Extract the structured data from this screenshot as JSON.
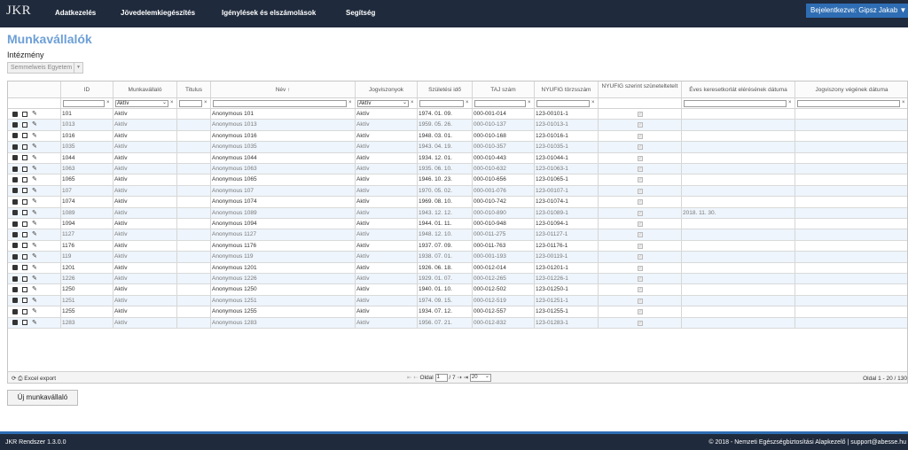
{
  "app": {
    "logo": "JKR"
  },
  "nav": [
    {
      "label": "Adatkezelés"
    },
    {
      "label": "Jövedelemkiegészítés"
    },
    {
      "label": "Igénylések és elszámolások"
    },
    {
      "label": "Segítség"
    }
  ],
  "login": {
    "label": "Bejelentkezve: Gipsz Jakab ▼"
  },
  "page": {
    "title": "Munkavállalók",
    "institution_label": "Intézmény",
    "institution_value": "Semmelweis Egyetem"
  },
  "columns": [
    "",
    "ID",
    "Munkavállaló",
    "Titulus",
    "Név ↑",
    "Jogviszonyok",
    "Születési idő",
    "TAJ szám",
    "NYUFIG törzsszám",
    "NYUFIG szerint szünetelteteIt",
    "Éves keresetkorlát elérésének dátuma",
    "Jogviszony végének dátuma"
  ],
  "filters": {
    "munkavallalo": "Aktív",
    "jogviszony": "Aktív",
    "clear": "×",
    "arrow": "⌄"
  },
  "rows": [
    {
      "id": "101",
      "status": "Aktív",
      "name": "Anonymous 101",
      "jog": "Aktív",
      "dob": "1974. 01. 09.",
      "taj": "000-001-014",
      "nyufig": "123-00101-1",
      "eves": ""
    },
    {
      "id": "1013",
      "status": "Aktív",
      "name": "Anonymous 1013",
      "jog": "Aktív",
      "dob": "1959. 05. 26.",
      "taj": "000-010-137",
      "nyufig": "123-01013-1",
      "eves": ""
    },
    {
      "id": "1016",
      "status": "Aktív",
      "name": "Anonymous 1016",
      "jog": "Aktív",
      "dob": "1948. 03. 01.",
      "taj": "000-010-168",
      "nyufig": "123-01016-1",
      "eves": ""
    },
    {
      "id": "1035",
      "status": "Aktív",
      "name": "Anonymous 1035",
      "jog": "Aktív",
      "dob": "1943. 04. 19.",
      "taj": "000-010-357",
      "nyufig": "123-01035-1",
      "eves": ""
    },
    {
      "id": "1044",
      "status": "Aktív",
      "name": "Anonymous 1044",
      "jog": "Aktív",
      "dob": "1934. 12. 01.",
      "taj": "000-010-443",
      "nyufig": "123-01044-1",
      "eves": ""
    },
    {
      "id": "1063",
      "status": "Aktív",
      "name": "Anonymous 1063",
      "jog": "Aktív",
      "dob": "1935. 06. 10.",
      "taj": "000-010-632",
      "nyufig": "123-01063-1",
      "eves": ""
    },
    {
      "id": "1065",
      "status": "Aktív",
      "name": "Anonymous 1065",
      "jog": "Aktív",
      "dob": "1946. 10. 23.",
      "taj": "000-010-656",
      "nyufig": "123-01065-1",
      "eves": ""
    },
    {
      "id": "107",
      "status": "Aktív",
      "name": "Anonymous 107",
      "jog": "Aktív",
      "dob": "1970. 05. 02.",
      "taj": "000-001-076",
      "nyufig": "123-00107-1",
      "eves": ""
    },
    {
      "id": "1074",
      "status": "Aktív",
      "name": "Anonymous 1074",
      "jog": "Aktív",
      "dob": "1969. 08. 10.",
      "taj": "000-010-742",
      "nyufig": "123-01074-1",
      "eves": ""
    },
    {
      "id": "1089",
      "status": "Aktív",
      "name": "Anonymous 1089",
      "jog": "Aktív",
      "dob": "1943. 12. 12.",
      "taj": "000-010-890",
      "nyufig": "123-01089-1",
      "eves": "2018. 11. 30."
    },
    {
      "id": "1094",
      "status": "Aktív",
      "name": "Anonymous 1094",
      "jog": "Aktív",
      "dob": "1944. 01. 11.",
      "taj": "000-010-948",
      "nyufig": "123-01094-1",
      "eves": ""
    },
    {
      "id": "1127",
      "status": "Aktív",
      "name": "Anonymous 1127",
      "jog": "Aktív",
      "dob": "1948. 12. 10.",
      "taj": "000-011-275",
      "nyufig": "123-01127-1",
      "eves": ""
    },
    {
      "id": "1176",
      "status": "Aktív",
      "name": "Anonymous 1176",
      "jog": "Aktív",
      "dob": "1937. 07. 09.",
      "taj": "000-011-763",
      "nyufig": "123-01176-1",
      "eves": ""
    },
    {
      "id": "119",
      "status": "Aktív",
      "name": "Anonymous 119",
      "jog": "Aktív",
      "dob": "1938. 07. 01.",
      "taj": "000-001-193",
      "nyufig": "123-00119-1",
      "eves": ""
    },
    {
      "id": "1201",
      "status": "Aktív",
      "name": "Anonymous 1201",
      "jog": "Aktív",
      "dob": "1926. 06. 18.",
      "taj": "000-012-014",
      "nyufig": "123-01201-1",
      "eves": ""
    },
    {
      "id": "1226",
      "status": "Aktív",
      "name": "Anonymous 1226",
      "jog": "Aktív",
      "dob": "1929. 01. 07.",
      "taj": "000-012-265",
      "nyufig": "123-01226-1",
      "eves": ""
    },
    {
      "id": "1250",
      "status": "Aktív",
      "name": "Anonymous 1250",
      "jog": "Aktív",
      "dob": "1940. 01. 10.",
      "taj": "000-012-502",
      "nyufig": "123-01250-1",
      "eves": ""
    },
    {
      "id": "1251",
      "status": "Aktív",
      "name": "Anonymous 1251",
      "jog": "Aktív",
      "dob": "1974. 09. 15.",
      "taj": "000-012-519",
      "nyufig": "123-01251-1",
      "eves": ""
    },
    {
      "id": "1255",
      "status": "Aktív",
      "name": "Anonymous 1255",
      "jog": "Aktív",
      "dob": "1934. 07. 12.",
      "taj": "000-012-557",
      "nyufig": "123-01255-1",
      "eves": ""
    },
    {
      "id": "1283",
      "status": "Aktív",
      "name": "Anonymous 1283",
      "jog": "Aktív",
      "dob": "1956. 07. 21.",
      "taj": "000-012-832",
      "nyufig": "123-01283-1",
      "eves": ""
    }
  ],
  "pager": {
    "export": "⟳ ⎙ Excel export",
    "nav_first": "⇤ ⇠",
    "page_label": "Oldal",
    "page_value": "1",
    "page_total": "/ 7",
    "nav_last": "⇢ ⇥",
    "page_size": "20",
    "summary": "Oldal 1 - 20 / 130"
  },
  "new_button": {
    "label": "Új munkavállaló"
  },
  "footer": {
    "version": "JKR Rendszer 1.3.0.0",
    "copyright": "© 2018 - Nemzeti Egészségbiztosítási Alapkezelő | support@abesse.hu"
  }
}
